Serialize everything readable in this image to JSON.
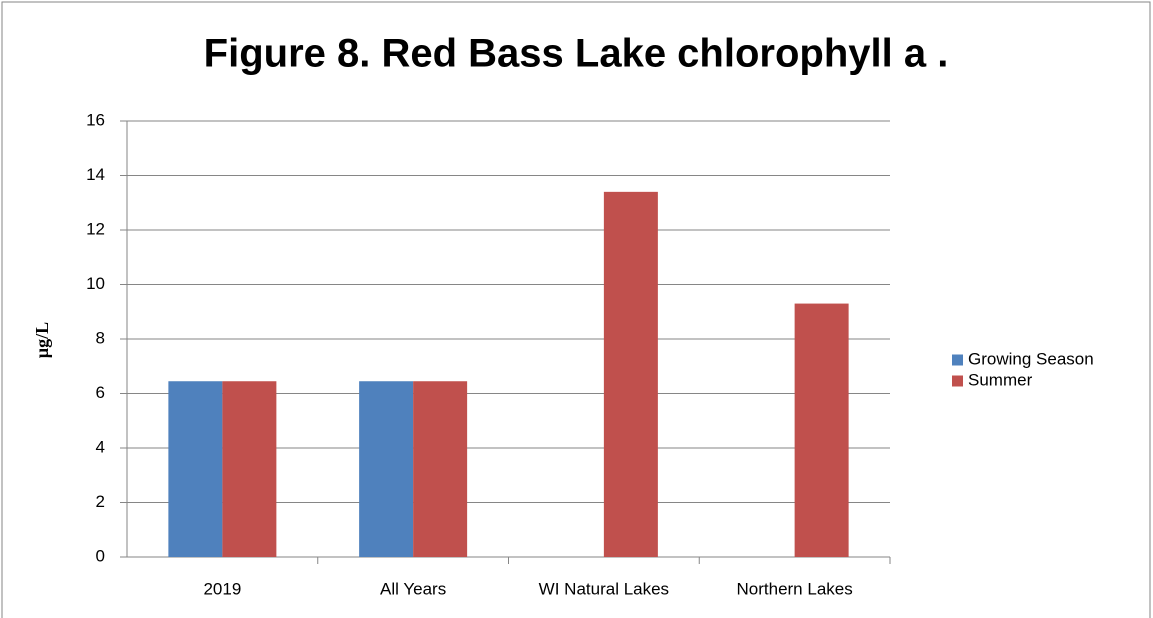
{
  "chart_data": {
    "type": "bar",
    "title": "Figure 8. Red Bass Lake chlorophyll a .",
    "ylabel": "µg/L",
    "categories": [
      "2019",
      "All Years",
      "WI Natural Lakes",
      "Northern Lakes"
    ],
    "series": [
      {
        "name": "Growing Season",
        "color": "#4f81bd",
        "values": [
          6.45,
          6.45,
          null,
          null
        ]
      },
      {
        "name": "Summer",
        "color": "#c0504d",
        "values": [
          6.45,
          6.45,
          13.4,
          9.3
        ]
      }
    ],
    "ylim": [
      0,
      16
    ],
    "yticks": [
      0,
      2,
      4,
      6,
      8,
      10,
      12,
      14,
      16
    ],
    "grid": true,
    "legend": "right"
  }
}
